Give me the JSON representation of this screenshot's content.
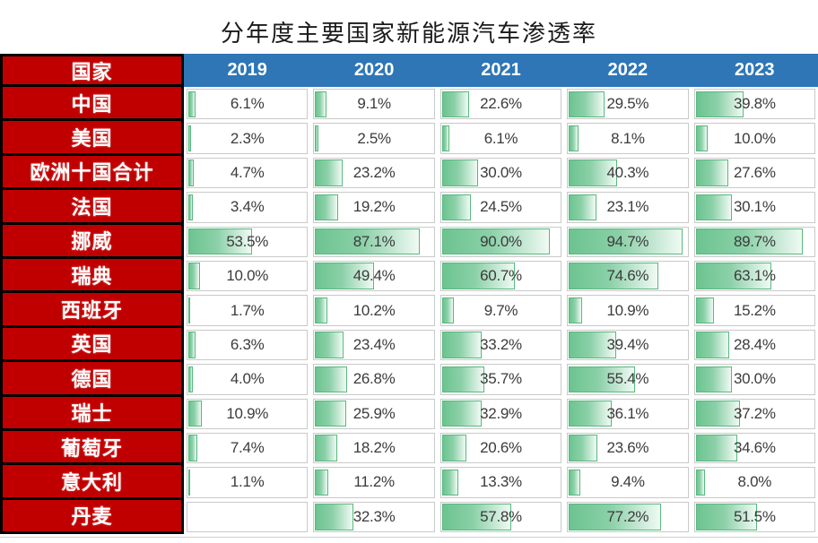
{
  "title": "分年度主要国家新能源汽车渗透率",
  "chart_data": {
    "type": "table",
    "title": "分年度主要国家新能源汽车渗透率",
    "corner_header": "国家",
    "columns": [
      "2019",
      "2020",
      "2021",
      "2022",
      "2023"
    ],
    "unit": "%",
    "bar_axis_range": [
      0,
      100
    ],
    "bar_style": "green-gradient-data-bars",
    "legend": "none",
    "rows": [
      {
        "country": "中国",
        "values": [
          6.1,
          9.1,
          22.6,
          29.5,
          39.8
        ],
        "labels": [
          "6.1%",
          "9.1%",
          "22.6%",
          "29.5%",
          "39.8%"
        ]
      },
      {
        "country": "美国",
        "values": [
          2.3,
          2.5,
          6.1,
          8.1,
          10.0
        ],
        "labels": [
          "2.3%",
          "2.5%",
          "6.1%",
          "8.1%",
          "10.0%"
        ]
      },
      {
        "country": "欧洲十国合计",
        "values": [
          4.7,
          23.2,
          30.0,
          40.3,
          27.6
        ],
        "labels": [
          "4.7%",
          "23.2%",
          "30.0%",
          "40.3%",
          "27.6%"
        ]
      },
      {
        "country": "法国",
        "values": [
          3.4,
          19.2,
          24.5,
          23.1,
          30.1
        ],
        "labels": [
          "3.4%",
          "19.2%",
          "24.5%",
          "23.1%",
          "30.1%"
        ]
      },
      {
        "country": "挪威",
        "values": [
          53.5,
          87.1,
          90.0,
          94.7,
          89.7
        ],
        "labels": [
          "53.5%",
          "87.1%",
          "90.0%",
          "94.7%",
          "89.7%"
        ]
      },
      {
        "country": "瑞典",
        "values": [
          10.0,
          49.4,
          60.7,
          74.6,
          63.1
        ],
        "labels": [
          "10.0%",
          "49.4%",
          "60.7%",
          "74.6%",
          "63.1%"
        ]
      },
      {
        "country": "西班牙",
        "values": [
          1.7,
          10.2,
          9.7,
          10.9,
          15.2
        ],
        "labels": [
          "1.7%",
          "10.2%",
          "9.7%",
          "10.9%",
          "15.2%"
        ]
      },
      {
        "country": "英国",
        "values": [
          6.3,
          23.4,
          33.2,
          39.4,
          28.4
        ],
        "labels": [
          "6.3%",
          "23.4%",
          "33.2%",
          "39.4%",
          "28.4%"
        ]
      },
      {
        "country": "德国",
        "values": [
          4.0,
          26.8,
          35.7,
          55.4,
          30.0
        ],
        "labels": [
          "4.0%",
          "26.8%",
          "35.7%",
          "55.4%",
          "30.0%"
        ]
      },
      {
        "country": "瑞士",
        "values": [
          10.9,
          25.9,
          32.9,
          36.1,
          37.2
        ],
        "labels": [
          "10.9%",
          "25.9%",
          "32.9%",
          "36.1%",
          "37.2%"
        ]
      },
      {
        "country": "葡萄牙",
        "values": [
          7.4,
          18.2,
          20.6,
          23.6,
          34.6
        ],
        "labels": [
          "7.4%",
          "18.2%",
          "20.6%",
          "23.6%",
          "34.6%"
        ]
      },
      {
        "country": "意大利",
        "values": [
          1.1,
          11.2,
          13.3,
          9.4,
          8.0
        ],
        "labels": [
          "1.1%",
          "11.2%",
          "13.3%",
          "9.4%",
          "8.0%"
        ]
      },
      {
        "country": "丹麦",
        "values": [
          null,
          32.3,
          57.8,
          77.2,
          51.5
        ],
        "labels": [
          "",
          "32.3%",
          "57.8%",
          "77.2%",
          "51.5%"
        ]
      }
    ],
    "colors": {
      "header_bg": "#2E76B6",
      "header_text": "#FFFFFF",
      "row_label_bg": "#C00000",
      "row_label_text": "#FFFFFF",
      "row_label_border": "#000000",
      "bar_fill_start": "#6CC490",
      "bar_fill_end": "#F0FAF4",
      "bar_border": "#57B97E",
      "cell_border": "#C9C9C9",
      "value_text": "#3B3B3B",
      "background": "#FFFFFF"
    }
  }
}
